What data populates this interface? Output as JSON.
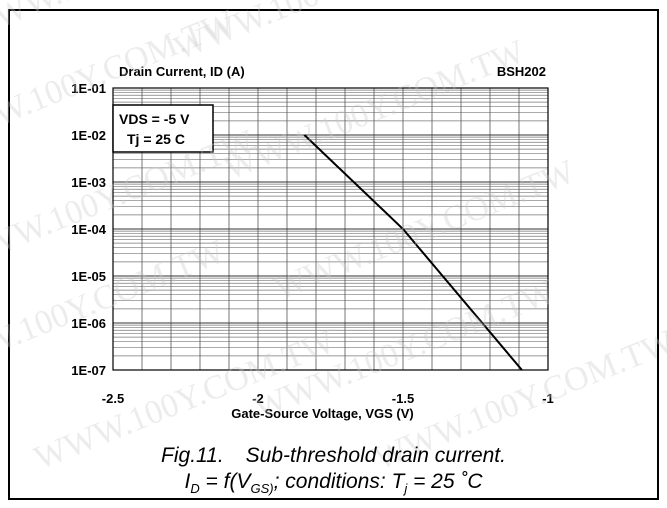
{
  "chart_data": {
    "type": "line",
    "title": "Drain Current, ID (A)",
    "part_number": "BSH202",
    "xlabel": "Gate-Source Voltage, VGS (V)",
    "ylabel": "Drain Current, ID (A)",
    "x_scale": "linear",
    "y_scale": "log",
    "xlim": [
      -2.5,
      -1
    ],
    "ylim": [
      1e-07,
      0.1
    ],
    "x_ticks": [
      -2.5,
      -2,
      -1.5,
      -1
    ],
    "x_tick_labels": [
      "-2.5",
      "-2",
      "-1.5",
      "-1"
    ],
    "y_ticks": [
      1e-07,
      1e-06,
      1e-05,
      0.0001,
      0.001,
      0.01,
      0.1
    ],
    "y_tick_labels": [
      "1E-07",
      "1E-06",
      "1E-05",
      "1E-04",
      "1E-03",
      "1E-02",
      "1E-01"
    ],
    "grid": true,
    "annotation_lines": [
      "VDS = -5 V",
      "Tj = 25 C"
    ],
    "series": [
      {
        "x": [
          -1.84,
          -1.5,
          -1.09
        ],
        "y": [
          0.01,
          0.0001,
          1e-07
        ]
      }
    ]
  },
  "caption": {
    "fig_number": "Fig.11.",
    "title": "Sub-threshold drain current.",
    "formula_prefix": "I",
    "formula_prefix_sub": "D",
    "formula_mid": " = f(V",
    "formula_mid_sub": "GS)",
    "formula_conditions": "; conditions: T",
    "formula_conditions_sub": "j",
    "formula_value": " = 25 ˚C"
  },
  "watermark": {
    "text": "WWW.100Y.COM.TW",
    "color": "#c8c8c8"
  }
}
